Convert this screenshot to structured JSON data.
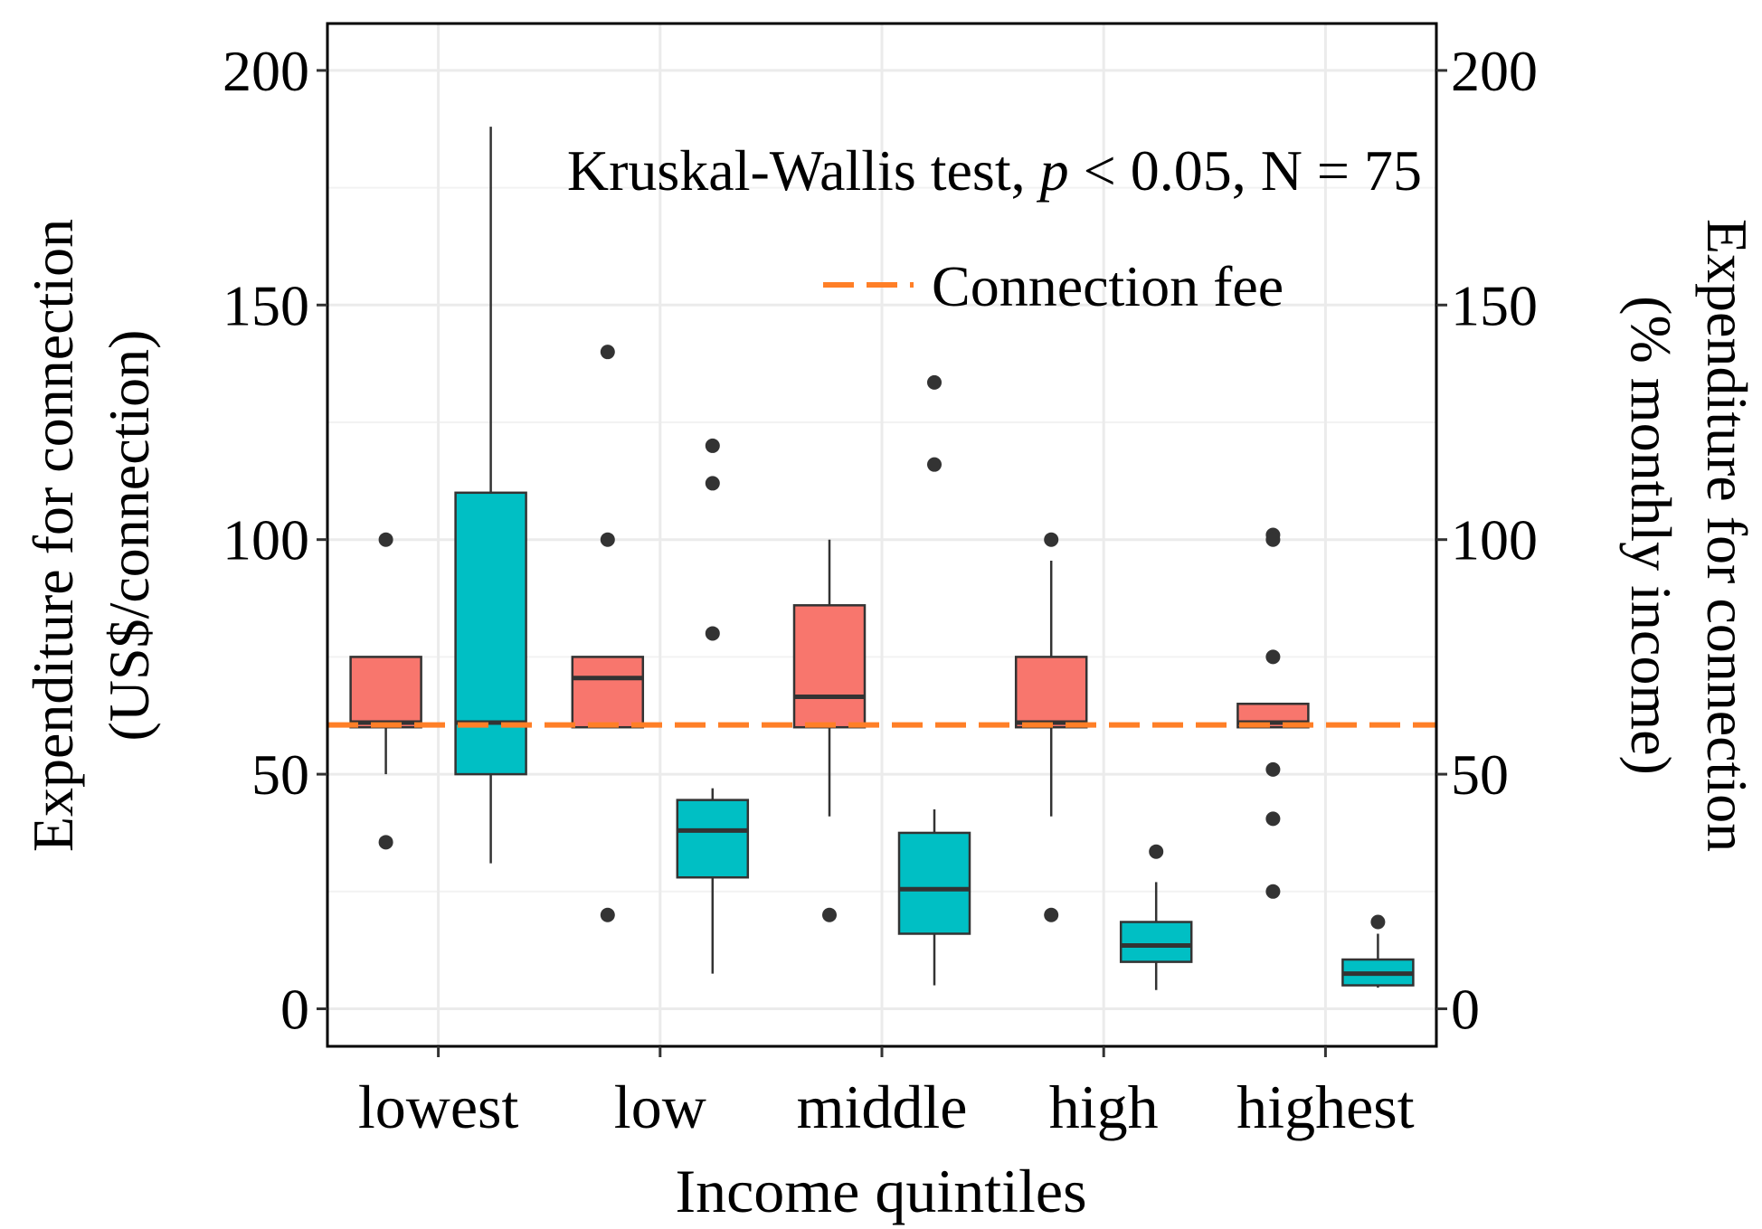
{
  "chart_data": {
    "type": "box",
    "categories": [
      "lowest",
      "low",
      "middle",
      "high",
      "highest"
    ],
    "xlabel": "Income quintiles",
    "ylabel_left": [
      "Expenditure for connection",
      "(US$/connection)"
    ],
    "ylabel_right": [
      "Expenditure for connection",
      "(% monthly income)"
    ],
    "ylim": [
      -8,
      210
    ],
    "yticks": [
      0,
      50,
      100,
      150,
      200
    ],
    "annotation": {
      "prefix": "Kruskal-Wallis test, ",
      "p": "p",
      "suffix": " < 0.05, N = 75"
    },
    "legend": {
      "label": "Connection fee",
      "position": "top-right"
    },
    "reference_line": {
      "label": "Connection fee",
      "value": 60.5
    },
    "series": [
      {
        "name": "US$/connection",
        "axis": "left",
        "color": "#f8766d",
        "boxes": [
          {
            "category": "lowest",
            "low": 50,
            "q1": 60,
            "median": 61,
            "q3": 75,
            "high": 75,
            "outliers": [
              100,
              35.5
            ]
          },
          {
            "category": "low",
            "low": 60,
            "q1": 60,
            "median": 70.5,
            "q3": 75,
            "high": 75,
            "outliers": [
              140,
              100,
              20
            ]
          },
          {
            "category": "middle",
            "low": 41,
            "q1": 60,
            "median": 66.5,
            "q3": 86,
            "high": 100,
            "outliers": [
              20
            ]
          },
          {
            "category": "high",
            "low": 41,
            "q1": 60,
            "median": 61,
            "q3": 75,
            "high": 95.5,
            "outliers": [
              100,
              20
            ]
          },
          {
            "category": "highest",
            "low": 60,
            "q1": 60,
            "median": 61,
            "q3": 65,
            "high": 65,
            "outliers": [
              101,
              100,
              75,
              51,
              40.5,
              25
            ]
          }
        ]
      },
      {
        "name": "% monthly income",
        "axis": "right",
        "color": "#00bfc4",
        "boxes": [
          {
            "category": "lowest",
            "low": 31,
            "q1": 50,
            "median": 61,
            "q3": 110,
            "high": 188,
            "outliers": []
          },
          {
            "category": "low",
            "low": 7.5,
            "q1": 28,
            "median": 38,
            "q3": 44.5,
            "high": 47,
            "outliers": [
              120,
              112,
              80
            ]
          },
          {
            "category": "middle",
            "low": 5,
            "q1": 16,
            "median": 25.5,
            "q3": 37.5,
            "high": 42.5,
            "outliers": [
              133.5,
              116
            ]
          },
          {
            "category": "high",
            "low": 4,
            "q1": 10,
            "median": 13.5,
            "q3": 18.5,
            "high": 27,
            "outliers": [
              33.5
            ]
          },
          {
            "category": "highest",
            "low": 4.5,
            "q1": 5,
            "median": 7.5,
            "q3": 10.5,
            "high": 16,
            "outliers": [
              18.5
            ]
          }
        ]
      }
    ]
  },
  "colors": {
    "left_series": "#f8766d",
    "right_series": "#00bfc4",
    "reference_line": "#ff7f27",
    "grid": "#ebebeb",
    "text": "#000000"
  }
}
